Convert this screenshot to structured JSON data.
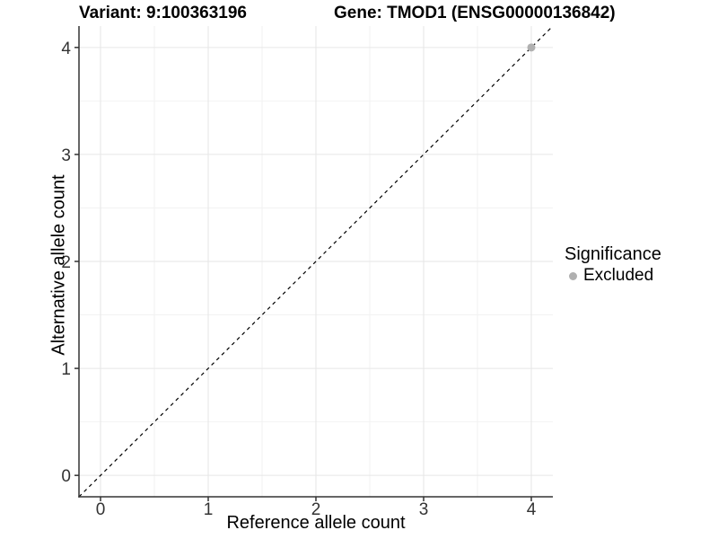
{
  "chart_data": {
    "type": "scatter",
    "titles": [
      "Variant: 9:100363196",
      "Gene: TMOD1 (ENSG00000136842)"
    ],
    "xlabel": "Reference allele count",
    "ylabel": "Alternative allele count",
    "xlim": [
      -0.2,
      4.2
    ],
    "ylim": [
      -0.2,
      4.2
    ],
    "xticks": [
      0,
      1,
      2,
      3,
      4
    ],
    "yticks": [
      0,
      1,
      2,
      3,
      4
    ],
    "grid": {
      "major": true,
      "minor": true,
      "major_color": "#e6e6e6",
      "minor_color": "#f2f2f2"
    },
    "axis_color": "#333333",
    "reference_line": {
      "type": "abline",
      "intercept": 0,
      "slope": 1,
      "style": "dashed",
      "color": "#000000"
    },
    "series": [
      {
        "name": "Excluded",
        "color": "#b0b0b0",
        "marker": "circle",
        "points": [
          [
            4,
            4
          ]
        ]
      }
    ],
    "legend": {
      "title": "Significance",
      "position": "right",
      "items": [
        {
          "label": "Excluded",
          "color": "#b0b0b0"
        }
      ]
    }
  }
}
